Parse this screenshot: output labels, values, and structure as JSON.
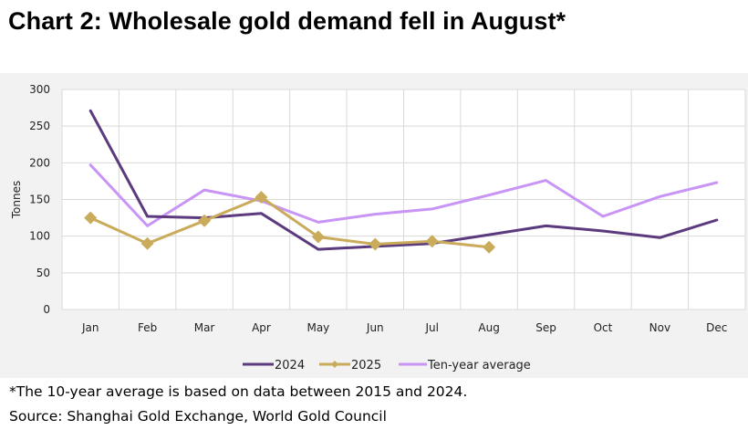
{
  "title": "Chart 2: Wholesale gold demand fell in August*",
  "footnote": "*The 10-year average is based on data between 2015 and 2024.",
  "source": "Source: Shanghai Gold Exchange, World Gold Council",
  "chart_data": {
    "type": "line",
    "categories": [
      "Jan",
      "Feb",
      "Mar",
      "Apr",
      "May",
      "Jun",
      "Jul",
      "Aug",
      "Sep",
      "Oct",
      "Nov",
      "Dec"
    ],
    "ylabel": "Tonnes",
    "ylim": [
      0,
      300
    ],
    "yticks": [
      0,
      50,
      100,
      150,
      200,
      250,
      300
    ],
    "grid": true,
    "legend_position": "bottom",
    "series": [
      {
        "name": "2024",
        "color": "#5b3a7e",
        "marker": "none",
        "values": [
          271,
          127,
          125,
          131,
          82,
          86,
          90,
          102,
          114,
          107,
          98,
          122
        ]
      },
      {
        "name": "2025",
        "color": "#c9ab5b",
        "marker": "diamond",
        "values": [
          125,
          90,
          121,
          153,
          99,
          89,
          93,
          85,
          null,
          null,
          null,
          null
        ]
      },
      {
        "name": "Ten-year average",
        "color": "#c894f5",
        "marker": "none",
        "values": [
          197,
          114,
          163,
          148,
          119,
          130,
          137,
          156,
          176,
          127,
          154,
          173
        ]
      }
    ]
  }
}
